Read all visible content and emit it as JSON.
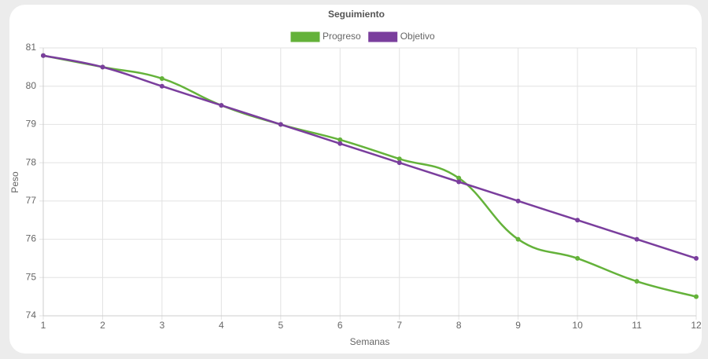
{
  "chart_data": {
    "type": "line",
    "title": "Seguimiento",
    "x_label": "Semanas",
    "y_label": "Peso",
    "x": [
      1,
      2,
      3,
      4,
      5,
      6,
      7,
      8,
      9,
      10,
      11,
      12
    ],
    "series": [
      {
        "name": "Progreso",
        "color": "#64b23a",
        "values": [
          80.8,
          80.5,
          80.2,
          79.5,
          79.0,
          78.6,
          78.1,
          77.6,
          76.0,
          75.5,
          74.9,
          74.5
        ]
      },
      {
        "name": "Objetivo",
        "color": "#7a3e9d",
        "values": [
          80.8,
          80.5,
          80.0,
          79.5,
          79.0,
          78.5,
          78.0,
          77.5,
          77.0,
          76.5,
          76.0,
          75.5
        ]
      }
    ],
    "xlim": [
      1,
      12
    ],
    "xticks": [
      1,
      2,
      3,
      4,
      5,
      6,
      7,
      8,
      9,
      10,
      11,
      12
    ],
    "ylim": [
      74,
      81
    ],
    "yticks": [
      74,
      75,
      76,
      77,
      78,
      79,
      80,
      81
    ],
    "grid": true,
    "legend": "top"
  }
}
